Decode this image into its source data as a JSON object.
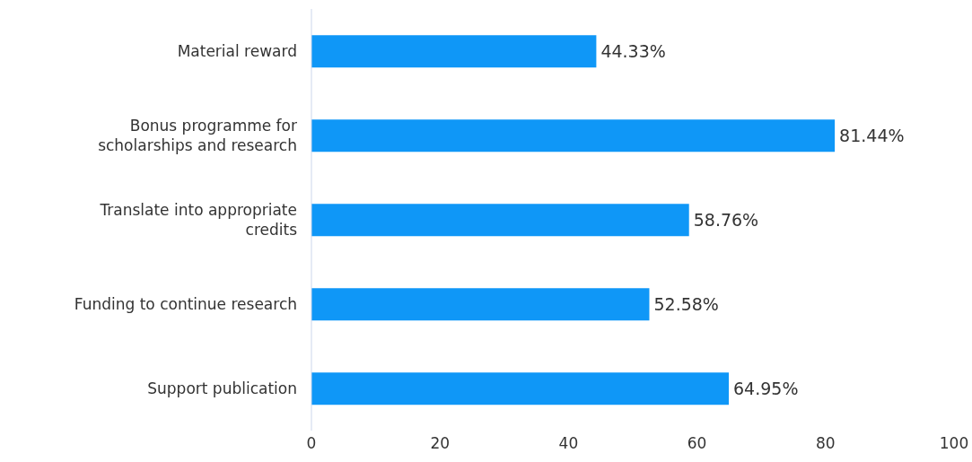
{
  "chart_data": {
    "type": "bar",
    "orientation": "horizontal",
    "categories": [
      "Material reward",
      "Bonus programme for scholarships and research",
      "Translate into appropriate credits",
      "Funding to continue research",
      "Support publication"
    ],
    "values": [
      44.33,
      81.44,
      58.76,
      52.58,
      64.95
    ],
    "value_labels": [
      "44.33%",
      "81.44%",
      "58.76%",
      "52.58%",
      "64.95%"
    ],
    "color": "#0f97f7",
    "xlim": [
      0,
      100
    ],
    "xticks": [
      0,
      20,
      40,
      60,
      80,
      100
    ],
    "grid": false,
    "legend": false
  }
}
